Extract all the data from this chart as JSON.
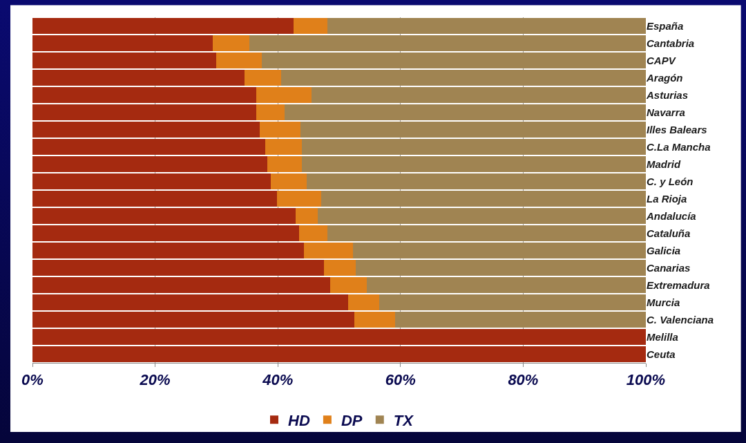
{
  "chart_data": {
    "type": "bar",
    "orientation": "horizontal",
    "stacked": true,
    "categories": [
      "España",
      "Cantabria",
      "CAPV",
      "Aragón",
      "Asturias",
      "Navarra",
      "Illes Balears",
      "C.La Mancha",
      "Madrid",
      "C. y León",
      "La Rioja",
      "Andalucía",
      "Cataluña",
      "Galicia",
      "Canarias",
      "Extremadura",
      "Murcia",
      "C. Valenciana",
      "Melilla",
      "Ceuta"
    ],
    "series": [
      {
        "name": "HD",
        "color": "#a52a10",
        "values": [
          42.6,
          29.4,
          30.0,
          34.6,
          36.5,
          36.5,
          37.1,
          38.0,
          38.3,
          38.9,
          39.9,
          42.9,
          43.5,
          44.3,
          47.5,
          48.5,
          51.5,
          52.5,
          100,
          100
        ]
      },
      {
        "name": "DP",
        "color": "#e0801a",
        "values": [
          5.5,
          6.0,
          7.4,
          5.9,
          9.0,
          4.6,
          6.6,
          5.9,
          5.6,
          5.8,
          7.2,
          3.6,
          4.6,
          8.0,
          5.2,
          6.0,
          5.0,
          6.6,
          0,
          0
        ]
      },
      {
        "name": "TX",
        "color": "#a08452",
        "values": [
          51.9,
          64.6,
          62.6,
          59.5,
          54.5,
          58.9,
          56.3,
          56.1,
          56.1,
          55.3,
          52.9,
          53.5,
          51.9,
          47.7,
          47.3,
          45.5,
          43.5,
          40.9,
          0,
          0
        ]
      }
    ],
    "xlim": [
      0,
      100
    ],
    "xticks": [
      {
        "value": 0,
        "label": "0%"
      },
      {
        "value": 20,
        "label": "20%"
      },
      {
        "value": 40,
        "label": "40%"
      },
      {
        "value": 60,
        "label": "60%"
      },
      {
        "value": 80,
        "label": "80%"
      },
      {
        "value": 100,
        "label": "100%"
      }
    ],
    "grid": "x",
    "legend": "bottom"
  }
}
